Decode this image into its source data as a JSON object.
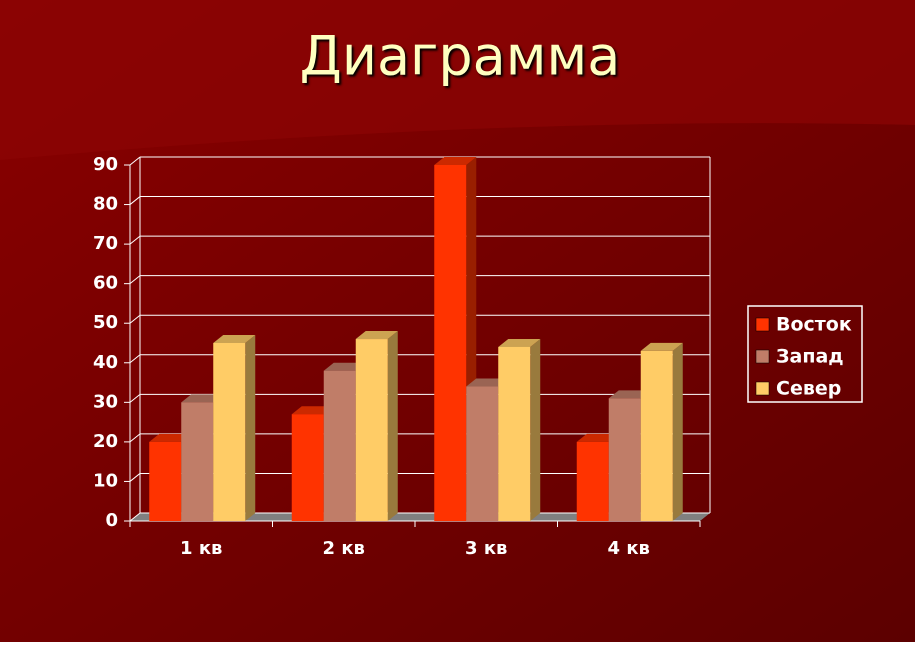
{
  "chart_data": {
    "type": "bar",
    "title": "Диаграмма",
    "categories": [
      "1 кв",
      "2 кв",
      "3 кв",
      "4 кв"
    ],
    "series": [
      {
        "name": "Восток",
        "color": "#ff3300",
        "values": [
          20,
          27,
          90,
          20
        ]
      },
      {
        "name": "Запад",
        "color": "#c07d68",
        "values": [
          30,
          38,
          34,
          31
        ]
      },
      {
        "name": "Север",
        "color": "#ffcc66",
        "values": [
          45,
          46,
          44,
          43
        ]
      }
    ],
    "ylim": [
      0,
      90
    ],
    "yticks": [
      0,
      10,
      20,
      30,
      40,
      50,
      60,
      70,
      80,
      90
    ],
    "grid": true,
    "legend": "right"
  }
}
